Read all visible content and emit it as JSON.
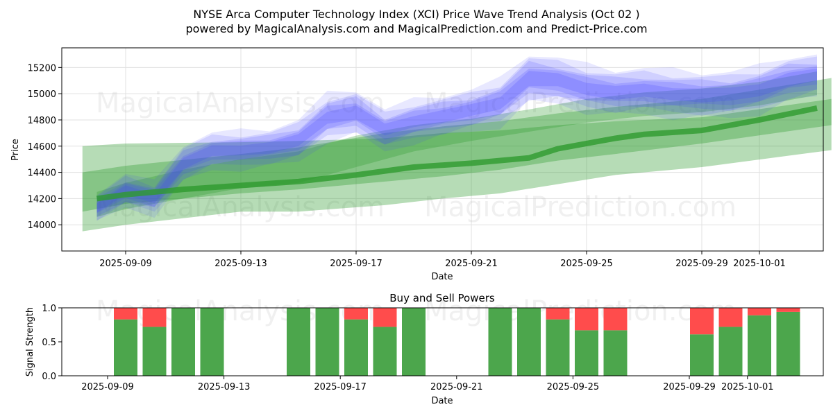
{
  "header": {
    "title_line1": "NYSE Arca Computer Technology Index (XCI) Price Wave Trend Analysis (Oct 02 )",
    "title_line2": "powered by MagicalAnalysis.com and MagicalPrediction.com and Predict-Price.com"
  },
  "watermarks": {
    "left": "MagicalAnalysis.com",
    "right": "MagicalPrediction.com"
  },
  "colors": {
    "blue": "#4040ff",
    "green": "#2e9a2e",
    "buy": "#4ca64c",
    "sell": "#ff4c4c",
    "grid": "#e0e0e0"
  },
  "chart_data": [
    {
      "type": "area",
      "title": "NYSE Arca Computer Technology Index (XCI) Price Wave Trend Analysis (Oct 02 )",
      "xlabel": "Date",
      "ylabel": "Price",
      "ylim": [
        13800,
        15350
      ],
      "yticks": [
        14000,
        14200,
        14400,
        14600,
        14800,
        15000,
        15200
      ],
      "xticks": [
        {
          "day": 2,
          "label": "2025-09-09"
        },
        {
          "day": 6,
          "label": "2025-09-13"
        },
        {
          "day": 10,
          "label": "2025-09-17"
        },
        {
          "day": 14,
          "label": "2025-09-21"
        },
        {
          "day": 18,
          "label": "2025-09-25"
        },
        {
          "day": 22,
          "label": "2025-09-29"
        },
        {
          "day": 24,
          "label": "2025-10-01"
        }
      ],
      "note": "x values are days since 2025-09-07",
      "blue_wave": {
        "x": [
          1,
          2,
          3,
          4,
          5,
          6,
          7,
          8,
          9,
          10,
          11,
          12,
          13,
          14,
          15,
          16,
          17,
          18,
          19,
          20,
          21,
          22,
          23,
          24,
          25,
          26
        ],
        "center": [
          14130,
          14260,
          14200,
          14470,
          14560,
          14570,
          14590,
          14640,
          14820,
          14860,
          14720,
          14790,
          14830,
          14870,
          14930,
          15120,
          15100,
          15040,
          15010,
          15020,
          15000,
          14990,
          14990,
          15030,
          15110,
          15140
        ],
        "spread": [
          70,
          80,
          80,
          90,
          90,
          90,
          90,
          100,
          110,
          110,
          100,
          100,
          100,
          100,
          110,
          120,
          110,
          110,
          110,
          110,
          110,
          110,
          110,
          110,
          110,
          100
        ]
      },
      "green_bands": [
        {
          "name": "outer",
          "x": [
            0.5,
            2,
            6,
            8,
            11,
            13,
            15,
            17,
            19,
            22,
            26.5
          ],
          "lower": [
            13950,
            14000,
            14100,
            14100,
            14150,
            14200,
            14240,
            14310,
            14380,
            14440,
            14570
          ],
          "upper": [
            14600,
            14620,
            14630,
            14640,
            14660,
            14700,
            14720,
            14760,
            14790,
            14820,
            14960
          ]
        },
        {
          "name": "middle",
          "x": [
            0.5,
            2,
            6,
            8,
            11,
            13,
            15,
            17,
            19,
            22,
            26.5
          ],
          "lower": [
            14100,
            14160,
            14240,
            14270,
            14330,
            14370,
            14420,
            14490,
            14540,
            14620,
            14760
          ],
          "upper": [
            14400,
            14450,
            14540,
            14590,
            14700,
            14750,
            14790,
            14850,
            14900,
            14960,
            15120
          ]
        },
        {
          "name": "inner",
          "x": [
            1,
            2,
            4,
            6,
            8,
            10,
            12,
            14,
            16,
            18,
            20,
            22,
            24,
            26
          ],
          "lower": [
            14060,
            14120,
            14200,
            14280,
            14320,
            14440,
            14560,
            14640,
            14710,
            14780,
            14830,
            14860,
            14910,
            14990
          ],
          "upper": [
            14250,
            14320,
            14420,
            14500,
            14560,
            14680,
            14760,
            14810,
            14880,
            14960,
            15010,
            15040,
            15090,
            15170
          ]
        }
      ],
      "green_trend": {
        "x": [
          1,
          2,
          4,
          6,
          8,
          10,
          12,
          14,
          16,
          17,
          18,
          19,
          20,
          22,
          24,
          26
        ],
        "y": [
          14200,
          14230,
          14270,
          14300,
          14330,
          14380,
          14440,
          14470,
          14510,
          14580,
          14620,
          14660,
          14690,
          14720,
          14800,
          14890
        ]
      }
    },
    {
      "type": "bar",
      "title": "Buy and Sell Powers",
      "xlabel": "Date",
      "ylabel": "Signal Strength",
      "ylim": [
        0,
        1
      ],
      "yticks": [
        0.0,
        0.5,
        1.0
      ],
      "ytick_labels": [
        "0.0",
        "0.5",
        "1.0"
      ],
      "xticks": [
        {
          "day": 2,
          "label": "2025-09-09"
        },
        {
          "day": 6,
          "label": "2025-09-13"
        },
        {
          "day": 10,
          "label": "2025-09-17"
        },
        {
          "day": 14,
          "label": "2025-09-21"
        },
        {
          "day": 18,
          "label": "2025-09-25"
        },
        {
          "day": 22,
          "label": "2025-09-29"
        },
        {
          "day": 24,
          "label": "2025-10-01"
        }
      ],
      "series": [
        {
          "name": "Buy",
          "color": "#4ca64c"
        },
        {
          "name": "Sell",
          "color": "#ff4c4c"
        }
      ],
      "bars": [
        {
          "day": 2,
          "buy": 0.83,
          "sell": 0.17
        },
        {
          "day": 3,
          "buy": 0.72,
          "sell": 0.28
        },
        {
          "day": 4,
          "buy": 1.0,
          "sell": 0.0
        },
        {
          "day": 5,
          "buy": 1.0,
          "sell": 0.0
        },
        {
          "day": 8,
          "buy": 1.0,
          "sell": 0.0
        },
        {
          "day": 9,
          "buy": 1.0,
          "sell": 0.0
        },
        {
          "day": 10,
          "buy": 0.83,
          "sell": 0.17
        },
        {
          "day": 11,
          "buy": 0.72,
          "sell": 0.28
        },
        {
          "day": 12,
          "buy": 1.0,
          "sell": 0.0
        },
        {
          "day": 15,
          "buy": 1.0,
          "sell": 0.0
        },
        {
          "day": 16,
          "buy": 1.0,
          "sell": 0.0
        },
        {
          "day": 17,
          "buy": 0.83,
          "sell": 0.17
        },
        {
          "day": 18,
          "buy": 0.67,
          "sell": 0.33
        },
        {
          "day": 19,
          "buy": 0.67,
          "sell": 0.33
        },
        {
          "day": 22,
          "buy": 0.61,
          "sell": 0.39
        },
        {
          "day": 23,
          "buy": 0.72,
          "sell": 0.28
        },
        {
          "day": 24,
          "buy": 0.89,
          "sell": 0.11
        },
        {
          "day": 25,
          "buy": 0.94,
          "sell": 0.06
        }
      ]
    }
  ]
}
